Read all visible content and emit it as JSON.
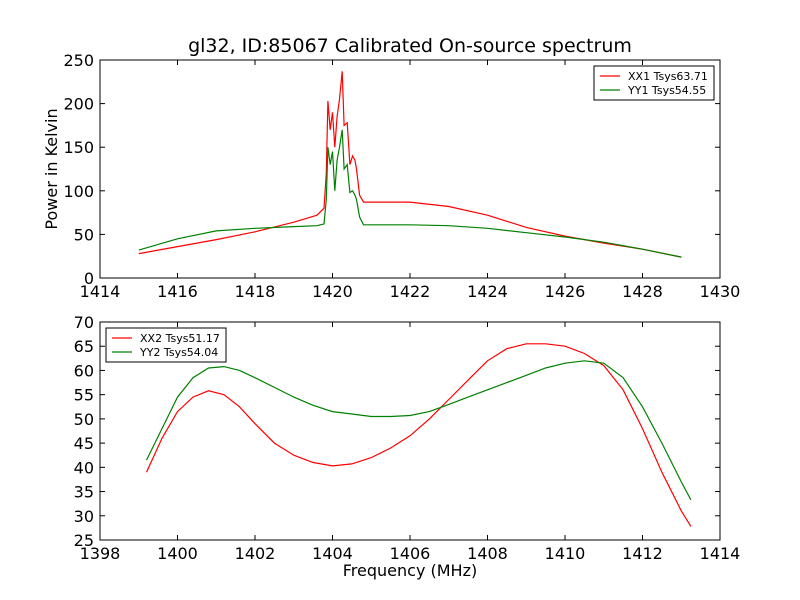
{
  "figure": {
    "title": "gl32, ID:85067 Calibrated On-source spectrum"
  },
  "colors": {
    "xx": "#ff0000",
    "yy": "#008000"
  },
  "chart_data": [
    {
      "type": "line",
      "ylabel": "Power in Kelvin",
      "xlabel": "",
      "xlim": [
        1414,
        1430
      ],
      "ylim": [
        0,
        250
      ],
      "xticks": [
        1414,
        1416,
        1418,
        1420,
        1422,
        1424,
        1426,
        1428,
        1430
      ],
      "yticks": [
        0,
        50,
        100,
        150,
        200,
        250
      ],
      "legend_position": "top-right",
      "series": [
        {
          "name": "XX1 Tsys63.71",
          "color": "#ff0000",
          "x": [
            1415.0,
            1416.0,
            1417.0,
            1418.0,
            1419.0,
            1419.6,
            1419.78,
            1419.84,
            1419.88,
            1419.94,
            1420.0,
            1420.06,
            1420.12,
            1420.18,
            1420.25,
            1420.3,
            1420.38,
            1420.45,
            1420.52,
            1420.58,
            1420.62,
            1420.7,
            1420.8,
            1421.0,
            1422.0,
            1423.0,
            1424.0,
            1425.0,
            1426.0,
            1427.0,
            1428.0,
            1429.0
          ],
          "y": [
            28,
            36,
            44,
            53,
            64,
            72,
            80,
            120,
            203,
            170,
            190,
            150,
            185,
            205,
            237,
            175,
            178,
            130,
            140,
            135,
            125,
            95,
            87,
            87,
            87,
            82,
            72,
            58,
            48,
            40,
            33,
            24
          ]
        },
        {
          "name": "YY1 Tsys54.55",
          "color": "#008000",
          "x": [
            1415.0,
            1416.0,
            1417.0,
            1418.0,
            1419.0,
            1419.6,
            1419.78,
            1419.84,
            1419.88,
            1419.94,
            1420.0,
            1420.06,
            1420.12,
            1420.18,
            1420.25,
            1420.3,
            1420.38,
            1420.45,
            1420.52,
            1420.58,
            1420.62,
            1420.7,
            1420.8,
            1421.0,
            1422.0,
            1423.0,
            1424.0,
            1425.0,
            1426.0,
            1427.0,
            1428.0,
            1429.0
          ],
          "y": [
            32,
            45,
            54,
            57,
            59,
            60,
            62,
            90,
            150,
            130,
            145,
            100,
            135,
            150,
            170,
            125,
            130,
            98,
            100,
            95,
            90,
            70,
            61,
            61,
            61,
            60,
            57,
            52,
            47,
            41,
            33,
            24
          ]
        }
      ]
    },
    {
      "type": "line",
      "xlabel": "Frequency (MHz)",
      "ylabel": "",
      "xlim": [
        1398,
        1414
      ],
      "ylim": [
        25,
        70
      ],
      "xticks": [
        1398,
        1400,
        1402,
        1404,
        1406,
        1408,
        1410,
        1412,
        1414
      ],
      "yticks": [
        25,
        30,
        35,
        40,
        45,
        50,
        55,
        60,
        65,
        70
      ],
      "legend_position": "top-left",
      "series": [
        {
          "name": "XX2 Tsys51.17",
          "color": "#ff0000",
          "x": [
            1399.2,
            1399.6,
            1400.0,
            1400.4,
            1400.8,
            1401.2,
            1401.6,
            1402.0,
            1402.5,
            1403.0,
            1403.5,
            1404.0,
            1404.5,
            1405.0,
            1405.5,
            1406.0,
            1406.5,
            1407.0,
            1407.5,
            1408.0,
            1408.5,
            1409.0,
            1409.5,
            1410.0,
            1410.5,
            1411.0,
            1411.5,
            1412.0,
            1412.5,
            1413.0,
            1413.25
          ],
          "y": [
            39,
            46,
            51.5,
            54.5,
            55.8,
            55,
            52.5,
            49,
            45,
            42.5,
            41,
            40.3,
            40.7,
            42,
            44,
            46.5,
            50,
            54,
            58,
            62,
            64.5,
            65.5,
            65.5,
            65,
            63.5,
            61,
            56,
            48,
            39,
            31,
            27.8
          ]
        },
        {
          "name": "YY2 Tsys54.04",
          "color": "#008000",
          "x": [
            1399.2,
            1399.6,
            1400.0,
            1400.4,
            1400.8,
            1401.2,
            1401.6,
            1402.0,
            1402.5,
            1403.0,
            1403.5,
            1404.0,
            1404.5,
            1405.0,
            1405.5,
            1406.0,
            1406.5,
            1407.0,
            1407.5,
            1408.0,
            1408.5,
            1409.0,
            1409.5,
            1410.0,
            1410.5,
            1411.0,
            1411.5,
            1412.0,
            1412.5,
            1413.0,
            1413.25
          ],
          "y": [
            41.5,
            48,
            54.5,
            58.5,
            60.5,
            60.8,
            60,
            58.5,
            56.5,
            54.5,
            52.8,
            51.5,
            51,
            50.5,
            50.5,
            50.7,
            51.5,
            53,
            54.5,
            56,
            57.5,
            59,
            60.5,
            61.5,
            62,
            61.5,
            58.5,
            52.5,
            45,
            37,
            33.3
          ]
        }
      ]
    }
  ]
}
